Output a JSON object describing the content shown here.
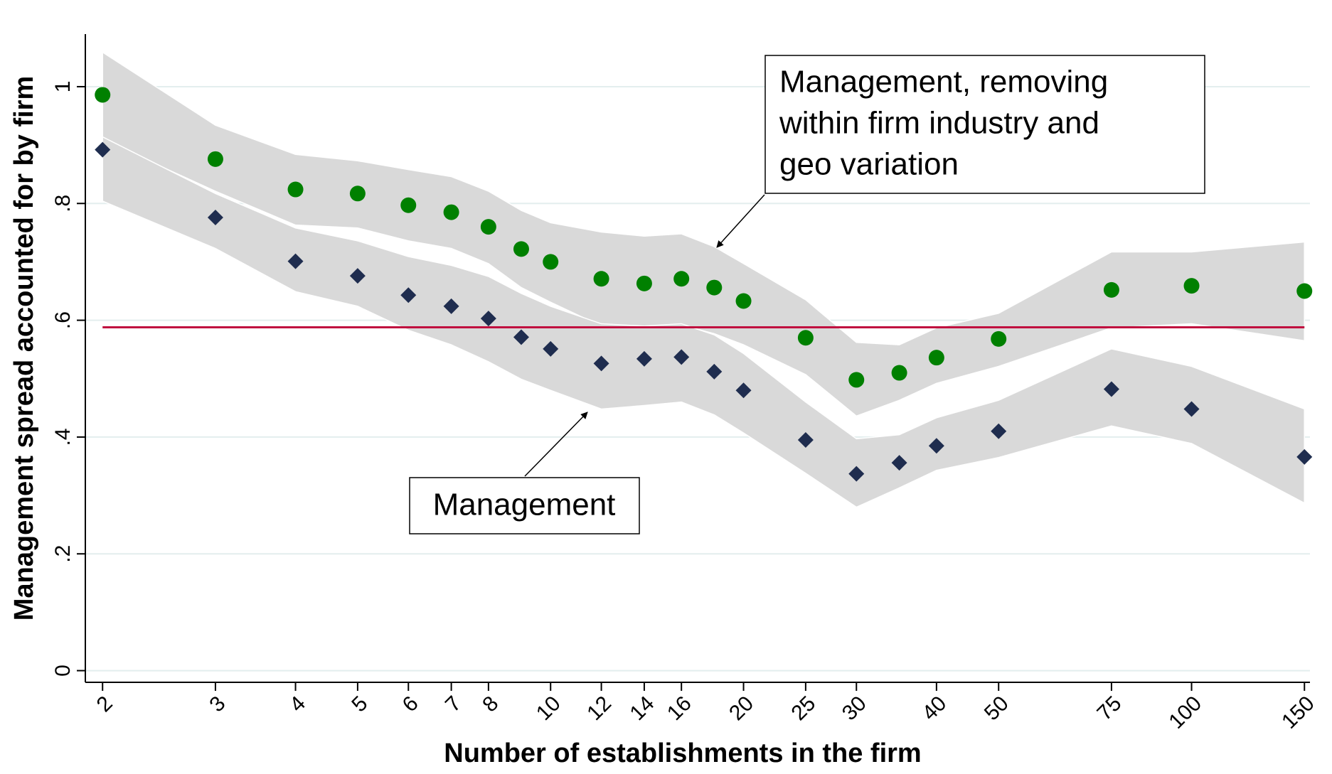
{
  "chart_data": {
    "type": "scatter",
    "x_label": "Number of establishments in the firm",
    "y_label": "Management spread accounted for by firm",
    "x_scale": "log",
    "grid": true,
    "xlim": [
      1.88,
      153
    ],
    "ylim": [
      -0.02,
      1.09
    ],
    "xticks": [
      2,
      3,
      4,
      5,
      6,
      7,
      8,
      10,
      12,
      14,
      16,
      20,
      25,
      30,
      40,
      50,
      75,
      100,
      150
    ],
    "yticks": [
      0,
      {
        "value": 0.2,
        "label": ".2"
      },
      {
        "value": 0.4,
        "label": ".4"
      },
      {
        "value": 0.6,
        "label": ".6"
      },
      {
        "value": 0.8,
        "label": ".8"
      },
      1
    ],
    "x": [
      2,
      3,
      4,
      5,
      6,
      7,
      8,
      9,
      10,
      12,
      14,
      16,
      18,
      20,
      25,
      30,
      35,
      40,
      50,
      75,
      100,
      150
    ],
    "band_color": "#d9d9d9",
    "series": [
      {
        "color": "#008000",
        "marker": "circle",
        "values": [
          0.986,
          0.876,
          0.824,
          0.817,
          0.797,
          0.785,
          0.76,
          0.722,
          0.7,
          0.671,
          0.663,
          0.671,
          0.656,
          0.633,
          0.57,
          0.498,
          0.51,
          0.536,
          0.568,
          0.652,
          0.659,
          0.65
        ],
        "upper": [
          1.059,
          0.934,
          0.884,
          0.873,
          0.858,
          0.846,
          0.821,
          0.788,
          0.767,
          0.751,
          0.744,
          0.748,
          0.726,
          0.697,
          0.635,
          0.562,
          0.558,
          0.587,
          0.612,
          0.717,
          0.717,
          0.734
        ],
        "lower": [
          0.909,
          0.821,
          0.763,
          0.758,
          0.736,
          0.723,
          0.697,
          0.656,
          0.631,
          0.59,
          0.577,
          0.592,
          0.577,
          0.558,
          0.507,
          0.436,
          0.463,
          0.492,
          0.521,
          0.587,
          0.594,
          0.565
        ]
      },
      {
        "color": "#1f2d4f",
        "marker": "diamond",
        "values": [
          0.892,
          0.776,
          0.701,
          0.676,
          0.643,
          0.624,
          0.603,
          0.571,
          0.551,
          0.526,
          0.534,
          0.537,
          0.512,
          0.48,
          0.395,
          0.337,
          0.356,
          0.385,
          0.41,
          0.482,
          0.448,
          0.366
        ],
        "upper": [
          0.914,
          0.817,
          0.758,
          0.736,
          0.709,
          0.694,
          0.675,
          0.646,
          0.624,
          0.594,
          0.59,
          0.594,
          0.575,
          0.543,
          0.46,
          0.397,
          0.404,
          0.433,
          0.463,
          0.551,
          0.521,
          0.448
        ],
        "lower": [
          0.804,
          0.723,
          0.649,
          0.624,
          0.583,
          0.558,
          0.529,
          0.499,
          0.48,
          0.448,
          0.454,
          0.46,
          0.438,
          0.407,
          0.338,
          0.28,
          0.313,
          0.343,
          0.365,
          0.419,
          0.389,
          0.287
        ]
      }
    ],
    "hline": {
      "value": 0.588,
      "color": "#c0103f"
    },
    "annotations": [
      {
        "lines": [
          "Management, removing",
          "within firm industry and",
          "geo variation"
        ]
      },
      {
        "lines": [
          "Management"
        ]
      }
    ]
  }
}
